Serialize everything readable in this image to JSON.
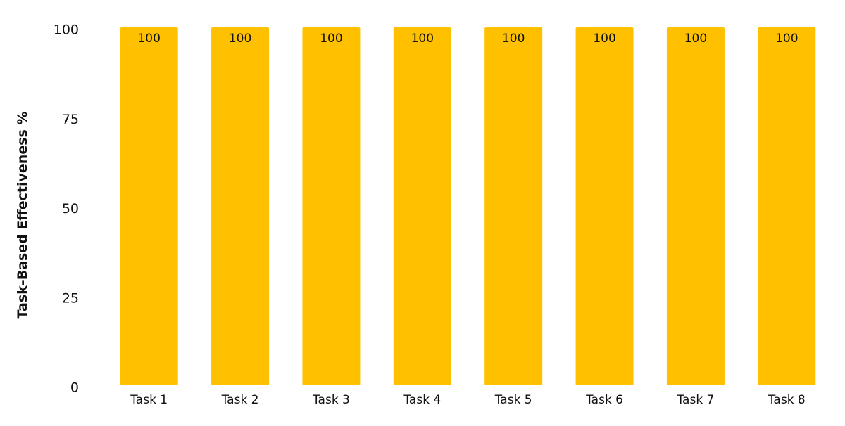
{
  "chart_data": {
    "type": "bar",
    "title": "",
    "xlabel": "",
    "ylabel": "Task-Based Effectiveness %",
    "categories": [
      "Task 1",
      "Task 2",
      "Task 3",
      "Task 4",
      "Task 5",
      "Task 6",
      "Task 7",
      "Task 8"
    ],
    "values": [
      100,
      100,
      100,
      100,
      100,
      100,
      100,
      100
    ],
    "data_labels": [
      "100",
      "100",
      "100",
      "100",
      "100",
      "100",
      "100",
      "100"
    ],
    "ylim": [
      0,
      100
    ],
    "yticks": [
      0,
      25,
      50,
      75,
      100
    ],
    "ytick_labels": [
      "0",
      "25",
      "50",
      "75",
      "100"
    ],
    "grid": false,
    "legend": "none",
    "bar_color": "#FFC000"
  }
}
